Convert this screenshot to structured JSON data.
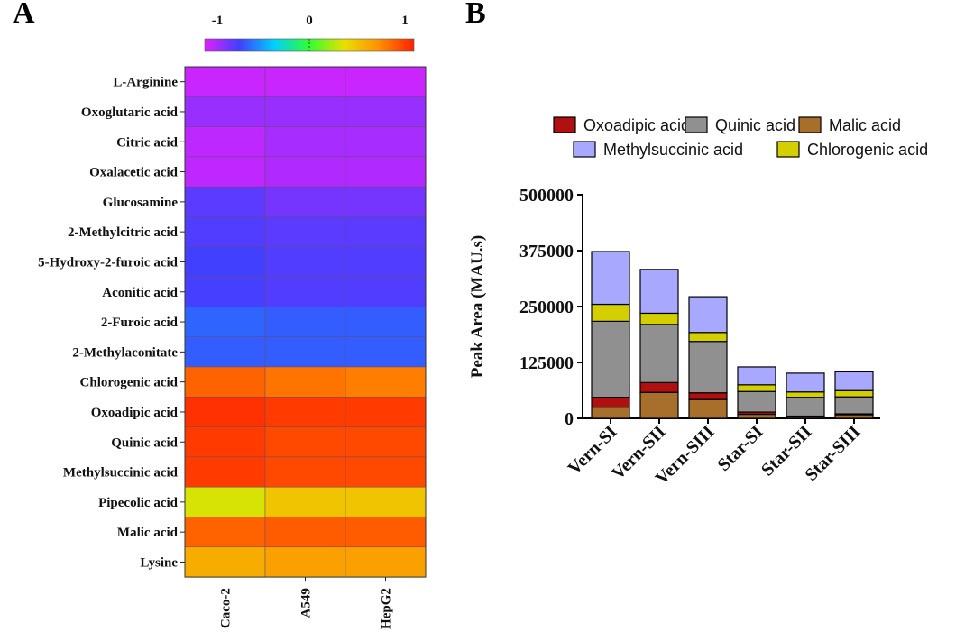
{
  "panel_labels": {
    "a": "A",
    "b": "B"
  },
  "chart_data": [
    {
      "type": "heatmap",
      "panel": "A",
      "rows": [
        "L-Arginine",
        "Oxoglutaric  acid",
        "Citric  acid",
        "Oxalacetic acid",
        "Glucosamine",
        "2-Methylcitric  acid",
        "5-Hydroxy-2-furoic  acid",
        "Aconitic  acid",
        "2-Furoic  acid",
        "2-Methylaconitate",
        "Chlorogenic  acid",
        "Oxoadipic  acid",
        "Quinic  acid",
        "Methylsuccinic acid",
        "Pipecolic  acid",
        "Malic acid",
        "Lysine"
      ],
      "columns": [
        "Caco-2",
        "A549",
        "HepG2"
      ],
      "values": [
        [
          -0.95,
          -0.95,
          -0.95
        ],
        [
          -0.85,
          -0.85,
          -0.85
        ],
        [
          -0.93,
          -0.88,
          -0.88
        ],
        [
          -0.93,
          -0.9,
          -0.9
        ],
        [
          -0.72,
          -0.78,
          -0.78
        ],
        [
          -0.7,
          -0.72,
          -0.72
        ],
        [
          -0.67,
          -0.7,
          -0.7
        ],
        [
          -0.68,
          -0.7,
          -0.7
        ],
        [
          -0.58,
          -0.6,
          -0.6
        ],
        [
          -0.6,
          -0.6,
          -0.6
        ],
        [
          0.8,
          0.75,
          0.72
        ],
        [
          0.95,
          0.92,
          0.92
        ],
        [
          0.92,
          0.88,
          0.88
        ],
        [
          0.92,
          0.88,
          0.88
        ],
        [
          0.3,
          0.45,
          0.45
        ],
        [
          0.8,
          0.82,
          0.82
        ],
        [
          0.55,
          0.6,
          0.6
        ]
      ],
      "colorbar": {
        "ticks": [
          "-1",
          "0",
          "1"
        ],
        "range": [
          -1,
          1
        ],
        "colors": [
          "#e020ff",
          "#4040ff",
          "#00d0ff",
          "#30ff30",
          "#e8e000",
          "#ff9000",
          "#ff2000"
        ]
      }
    },
    {
      "type": "bar",
      "stacked": true,
      "panel": "B",
      "categories": [
        "Vern-SI",
        "Vern-SII",
        "Vern-SIII",
        "Star-SI",
        "Star-SII",
        "Star-SIII"
      ],
      "series": [
        {
          "name": "Malic acid",
          "color": "#a86f2c",
          "values": [
            25000,
            58000,
            42000,
            9000,
            3000,
            8000
          ]
        },
        {
          "name": "Oxoadipic acid",
          "color": "#b01010",
          "values": [
            22000,
            22000,
            15000,
            5000,
            2000,
            2000
          ]
        },
        {
          "name": "Quinic acid",
          "color": "#909090",
          "values": [
            170000,
            130000,
            115000,
            46000,
            42000,
            38000
          ]
        },
        {
          "name": "Chlorogenic acid",
          "color": "#d4d000",
          "values": [
            38000,
            25000,
            20000,
            15000,
            12000,
            14000
          ]
        },
        {
          "name": "Methylsuccinic acid",
          "color": "#a8a8ff",
          "values": [
            118000,
            98000,
            80000,
            40000,
            42000,
            42000
          ]
        }
      ],
      "legend_order": [
        "Oxoadipic acid",
        "Quinic acid",
        "Malic acid",
        "Methylsuccinic acid",
        "Chlorogenic acid"
      ],
      "ylabel": "Peak Area (MAU.s)",
      "xlabel": "",
      "ylim": [
        0,
        500000
      ],
      "yticks": [
        "0",
        "125000",
        "250000",
        "375000",
        "500000"
      ]
    }
  ]
}
